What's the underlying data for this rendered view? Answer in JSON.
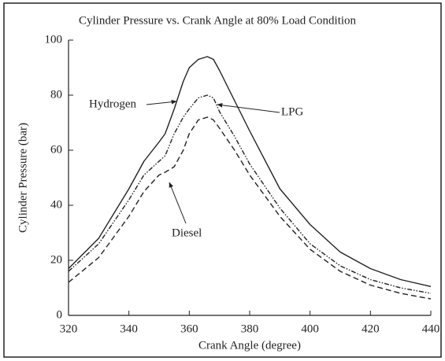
{
  "chart_data": {
    "type": "line",
    "title": "Cylinder Pressure vs. Crank Angle at 80% Load Condition",
    "x_label": "Crank Angle (degree)",
    "y_label": "Cylinder Pressure (bar)",
    "x": [
      320,
      330,
      340,
      345,
      350,
      352,
      355,
      358,
      360,
      363,
      366,
      368,
      370,
      375,
      380,
      390,
      400,
      410,
      420,
      430,
      440
    ],
    "series": [
      {
        "name": "Hydrogen",
        "color": "#222222",
        "linestyle": "solid",
        "values": [
          17,
          28,
          46,
          56,
          63,
          66,
          75,
          85,
          90,
          93,
          94,
          93,
          89,
          78,
          67,
          46,
          33,
          23,
          17,
          13,
          10.5
        ]
      },
      {
        "name": "LPG",
        "color": "#222222",
        "linestyle": "dashdotdot",
        "values": [
          16,
          26,
          42,
          51,
          56,
          58,
          66,
          72,
          75,
          79,
          80,
          79,
          74,
          65,
          55,
          39,
          26,
          18,
          13,
          10,
          8
        ]
      },
      {
        "name": "Diesel",
        "color": "#222222",
        "linestyle": "dashed",
        "values": [
          12,
          21,
          36,
          45,
          51,
          52,
          54,
          60,
          66,
          71,
          72,
          71,
          68,
          60,
          51,
          36,
          24,
          16,
          11,
          8,
          6
        ]
      }
    ],
    "xlim": [
      320,
      440
    ],
    "xticks": [
      320,
      340,
      360,
      380,
      400,
      420,
      440
    ],
    "ylim": [
      0,
      100
    ],
    "yticks": [
      0,
      20,
      40,
      60,
      80,
      100
    ],
    "grid": false
  }
}
